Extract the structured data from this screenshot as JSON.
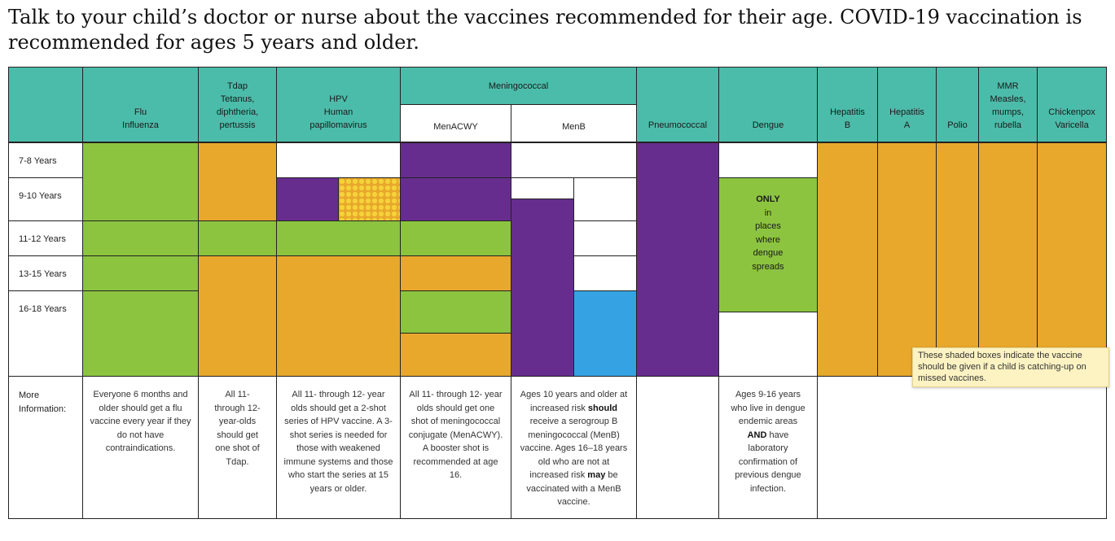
{
  "intro": "Talk to your child’s doctor or nurse about the vaccines recommended for their age. COVID-19 vaccination is recommended for ages 5 years and older.",
  "headers": {
    "flu": [
      "Flu",
      "Influenza"
    ],
    "tdap": [
      "Tdap",
      "Tetanus,",
      "diphtheria,",
      "pertussis"
    ],
    "hpv": [
      "HPV",
      "Human",
      "papillomavirus"
    ],
    "meningococcal": "Meningococcal",
    "menacwy": "MenACWY",
    "menb": "MenB",
    "pneumococcal": "Pneumococcal",
    "dengue": "Dengue",
    "hepb": [
      "Hepatitis",
      "B"
    ],
    "hepa": [
      "Hepatitis",
      "A"
    ],
    "polio": "Polio",
    "mmr": [
      "MMR",
      "Measles,",
      "mumps,",
      "rubella"
    ],
    "varicella": [
      "Chickenpox",
      "Varicella"
    ]
  },
  "ages": [
    "7-8 Years",
    "9-10 Years",
    "11-12 Years",
    "13-15 Years",
    "16-18 Years"
  ],
  "more_info_label": [
    "More",
    "Information:"
  ],
  "dengue_cell": {
    "only": "ONLY",
    "lines": [
      "in",
      "places",
      "where",
      "dengue",
      "spreads"
    ]
  },
  "notes": {
    "flu": "Everyone 6 months and older should get a flu vaccine every year if they do not have contraindications.",
    "tdap": "All 11- through 12- year-olds should get one shot of Tdap.",
    "hpv": "All 11- through 12- year olds should get a 2-shot series of HPV vaccine. A 3-shot series is needed for those with weakened immune systems and those who start the series at 15 years or older.",
    "menacwy": "All 11- through 12- year olds should get one shot of meningococcal conjugate (MenACWY). A booster shot is recommended at age 16.",
    "menb": {
      "p1": "Ages 10 years and older at increased risk ",
      "b1": "should",
      "p2": " receive a serogroup B meningococcal (MenB) vaccine. Ages 16–18 years old who are not at increased risk ",
      "b2": "may",
      "p3": " be vaccinated with a MenB vaccine."
    },
    "dengue": {
      "p1": "Ages 9-16 years who live in dengue endemic areas ",
      "b1": "AND",
      "p2": " have laboratory confirmation of previous dengue infection."
    }
  },
  "tooltip": "These shaded boxes indicate the vaccine should be given if a child is catching-up on missed vaccines.",
  "colors": {
    "header": "#4cbcaa",
    "recommended": "#8cc43f",
    "catch_up": "#e8a82c",
    "some_children": "#662d8f",
    "shared_decision": "#35a3e3"
  }
}
